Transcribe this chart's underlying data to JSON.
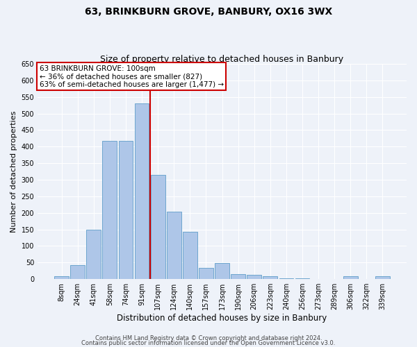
{
  "title": "63, BRINKBURN GROVE, BANBURY, OX16 3WX",
  "subtitle": "Size of property relative to detached houses in Banbury",
  "xlabel": "Distribution of detached houses by size in Banbury",
  "ylabel": "Number of detached properties",
  "categories": [
    "8sqm",
    "24sqm",
    "41sqm",
    "58sqm",
    "74sqm",
    "91sqm",
    "107sqm",
    "124sqm",
    "140sqm",
    "157sqm",
    "173sqm",
    "190sqm",
    "206sqm",
    "223sqm",
    "240sqm",
    "256sqm",
    "273sqm",
    "289sqm",
    "306sqm",
    "322sqm",
    "339sqm"
  ],
  "values": [
    8,
    43,
    150,
    417,
    418,
    530,
    315,
    204,
    143,
    35,
    49,
    16,
    13,
    8,
    2,
    2,
    1,
    1,
    8,
    1,
    8
  ],
  "bar_color": "#aec6e8",
  "bar_edge_color": "#5f9ec9",
  "annotation_line0": "63 BRINKBURN GROVE: 100sqm",
  "annotation_line1": "← 36% of detached houses are smaller (827)",
  "annotation_line2": "63% of semi-detached houses are larger (1,477) →",
  "vline_color": "#cc0000",
  "footer1": "Contains HM Land Registry data © Crown copyright and database right 2024.",
  "footer2": "Contains public sector information licensed under the Open Government Licence v3.0.",
  "ylim": [
    0,
    650
  ],
  "yticks": [
    0,
    50,
    100,
    150,
    200,
    250,
    300,
    350,
    400,
    450,
    500,
    550,
    600,
    650
  ],
  "background_color": "#eef2f9",
  "plot_background": "#eef2f9",
  "grid_color": "#ffffff",
  "title_fontsize": 10,
  "subtitle_fontsize": 9,
  "xlabel_fontsize": 8.5,
  "ylabel_fontsize": 8,
  "tick_fontsize": 7,
  "footer_fontsize": 6,
  "annotation_fontsize": 7.5
}
